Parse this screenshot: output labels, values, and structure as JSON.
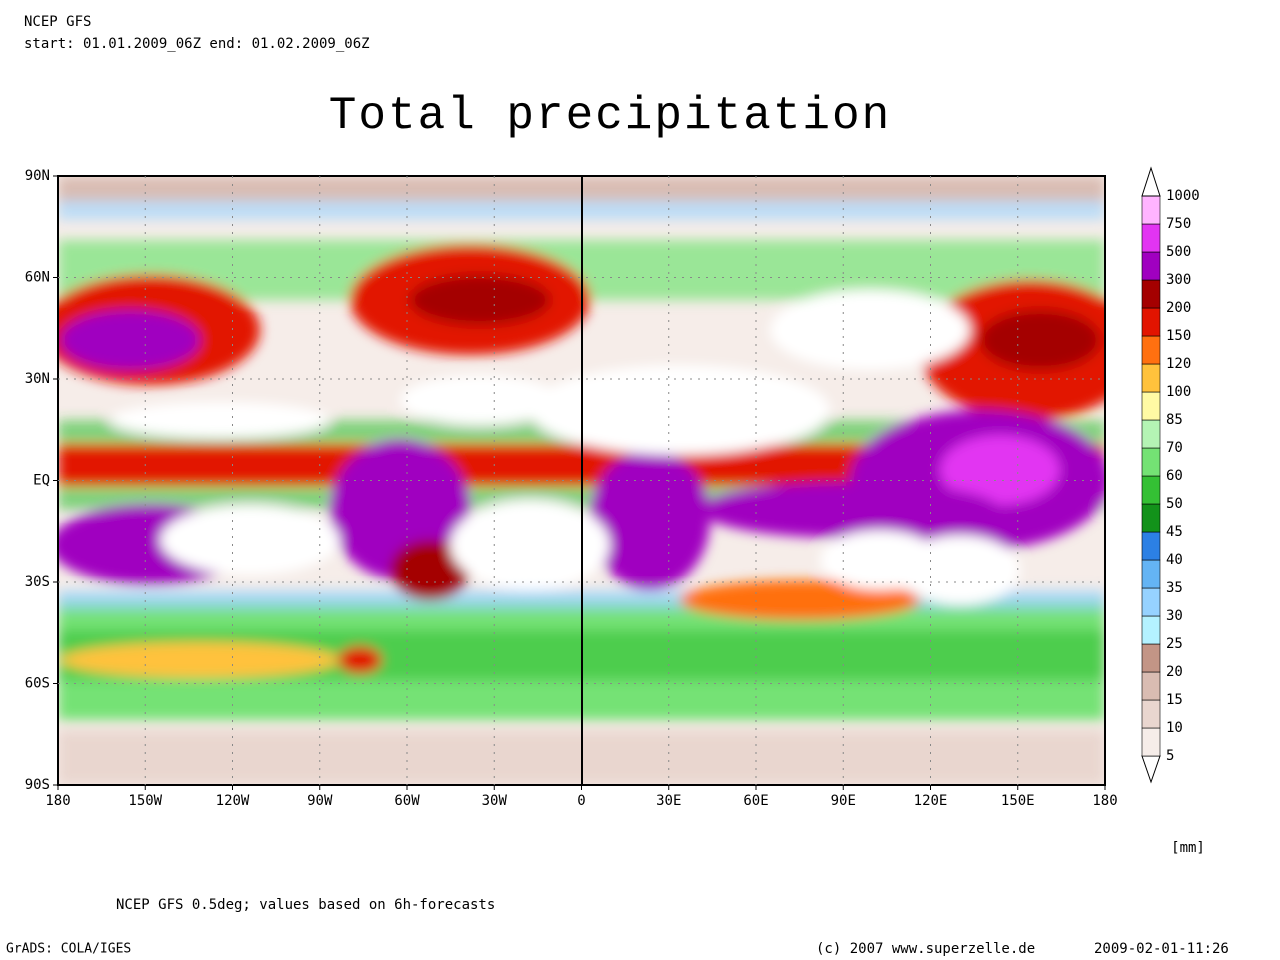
{
  "header": {
    "model": "NCEP GFS",
    "period": "start: 01.01.2009_06Z end: 01.02.2009_06Z"
  },
  "title": "Total precipitation",
  "map": {
    "lat_labels": [
      "90N",
      "60N",
      "30N",
      "EQ",
      "30S",
      "60S",
      "90S"
    ],
    "lon_labels": [
      "180",
      "150W",
      "120W",
      "90W",
      "60W",
      "30W",
      "0",
      "30E",
      "60E",
      "90E",
      "120E",
      "150E",
      "180"
    ]
  },
  "colorbar": {
    "levels": [
      5,
      10,
      15,
      20,
      25,
      30,
      35,
      40,
      45,
      50,
      60,
      70,
      85,
      100,
      120,
      150,
      200,
      300,
      500,
      750,
      1000
    ],
    "colors": [
      "#ffffff",
      "#f6ede9",
      "#e9d6cf",
      "#d9bcb2",
      "#c39586",
      "#b4f2ff",
      "#96d2ff",
      "#64b4f4",
      "#2c80e4",
      "#12921a",
      "#34c034",
      "#74e274",
      "#b4f4b4",
      "#fffaa4",
      "#ffc23c",
      "#ff7010",
      "#e21400",
      "#a40000",
      "#a000c0",
      "#e234f2",
      "#ffb4ff",
      "#ffffff"
    ],
    "unit": "[mm]"
  },
  "footer": {
    "note": "NCEP GFS 0.5deg; values based on 6h-forecasts",
    "software": "GrADS: COLA/IGES",
    "copyright": "(c) 2007 www.superzelle.de",
    "timestamp": "2009-02-01-11:26"
  }
}
